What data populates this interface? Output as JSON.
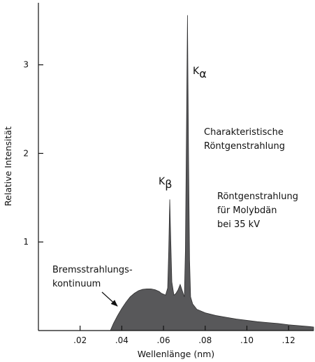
{
  "chart_data": {
    "type": "area",
    "xlabel": "Wellenlänge (nm)",
    "ylabel": "Relative Intensität",
    "xlim": [
      0,
      0.132
    ],
    "ylim": [
      0,
      3.7
    ],
    "x_ticks": [
      {
        "value": 0.02,
        "label": ".02"
      },
      {
        "value": 0.04,
        "label": ".04"
      },
      {
        "value": 0.06,
        "label": ".06"
      },
      {
        "value": 0.08,
        "label": ".08"
      },
      {
        "value": 0.1,
        "label": ".10"
      },
      {
        "value": 0.12,
        "label": ".12"
      }
    ],
    "y_ticks": [
      {
        "value": 1,
        "label": "1"
      },
      {
        "value": 2,
        "label": "2"
      },
      {
        "value": 3,
        "label": "3"
      }
    ],
    "grid": false,
    "fill_color": "#58585a",
    "series": [
      {
        "x": [
          0.0345,
          0.036,
          0.038,
          0.04,
          0.042,
          0.044,
          0.046,
          0.048,
          0.05,
          0.052,
          0.054,
          0.056,
          0.058,
          0.059,
          0.06,
          0.061,
          0.062,
          0.0625,
          0.063,
          0.0635,
          0.064,
          0.065,
          0.066,
          0.067,
          0.068,
          0.069,
          0.07,
          0.0705,
          0.071,
          0.0715,
          0.072,
          0.0725,
          0.073,
          0.074,
          0.076,
          0.08,
          0.085,
          0.09,
          0.095,
          0.1,
          0.105,
          0.11,
          0.115,
          0.12,
          0.125,
          0.13,
          0.132
        ],
        "y": [
          0.0,
          0.08,
          0.17,
          0.25,
          0.32,
          0.38,
          0.42,
          0.45,
          0.465,
          0.47,
          0.47,
          0.46,
          0.44,
          0.42,
          0.41,
          0.4,
          0.48,
          0.9,
          1.48,
          1.0,
          0.55,
          0.4,
          0.42,
          0.46,
          0.52,
          0.45,
          0.38,
          0.9,
          2.2,
          3.56,
          2.0,
          0.8,
          0.38,
          0.3,
          0.24,
          0.2,
          0.17,
          0.15,
          0.13,
          0.115,
          0.1,
          0.09,
          0.08,
          0.065,
          0.055,
          0.045,
          0.04
        ]
      }
    ],
    "annotations": {
      "k_alpha": {
        "main": "K",
        "sub": "α",
        "x": 0.0715,
        "y": 3.56
      },
      "k_beta": {
        "main": "K",
        "sub": "β",
        "x": 0.063,
        "y": 1.48
      },
      "characteristic": [
        "Charakteristische",
        "Röntgenstrahlung"
      ],
      "molybdenum": [
        "Röntgenstrahlung",
        "für Molybdän",
        "bei 35 kV"
      ],
      "bremsstrahlung": [
        "Bremsstrahlungs-",
        "kontinuum"
      ]
    }
  }
}
